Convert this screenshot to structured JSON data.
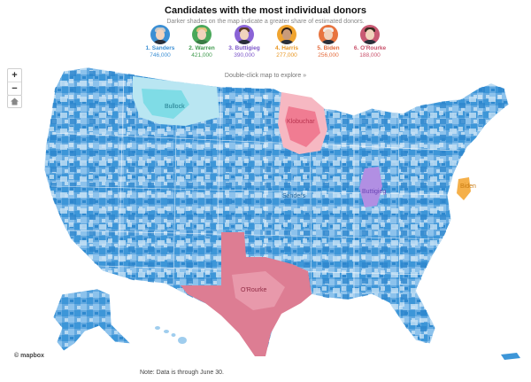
{
  "header": {
    "title": "Candidates with the most individual donors",
    "subtitle": "Darker shades on the map indicate a greater share of estimated donors."
  },
  "candidates": [
    {
      "name": "1. Sanders",
      "donors": "746,000",
      "color": "#3b8fd4",
      "bg": "#3b8fd4"
    },
    {
      "name": "2. Warren",
      "donors": "421,000",
      "color": "#3f9a4e",
      "bg": "#4aa85a"
    },
    {
      "name": "3. Buttigieg",
      "donors": "390,000",
      "color": "#7b55c9",
      "bg": "#8a63d6"
    },
    {
      "name": "4. Harris",
      "donors": "277,000",
      "color": "#e8951f",
      "bg": "#f0a42f"
    },
    {
      "name": "5. Biden",
      "donors": "256,000",
      "color": "#e46b3c",
      "bg": "#e8743f"
    },
    {
      "name": "6. O'Rourke",
      "donors": "188,000",
      "color": "#c9506a",
      "bg": "#c85973"
    }
  ],
  "controls": {
    "zoom_in": "+",
    "zoom_out": "−",
    "home_icon": "home-icon"
  },
  "map": {
    "hint": "Double-click map to explore »",
    "labels": {
      "bullock": "Bullock",
      "klobuchar": "Klobuchar",
      "sanders": "Sanders",
      "buttigieg": "Buttigieg",
      "biden": "Biden",
      "orourke": "O'Rourke"
    },
    "colors": {
      "sanders_dark": "#3d96d8",
      "sanders_mid": "#79b6e6",
      "sanders_light": "#b7d9f2",
      "bullock": "#7fdce6",
      "klobuchar": "#f4a1ae",
      "buttigieg": "#b18fe3",
      "biden": "#f5b04a",
      "orourke": "#dd7d93"
    }
  },
  "footer": {
    "note": "Note: Data is through June 30.",
    "attribution": "© mapbox"
  }
}
